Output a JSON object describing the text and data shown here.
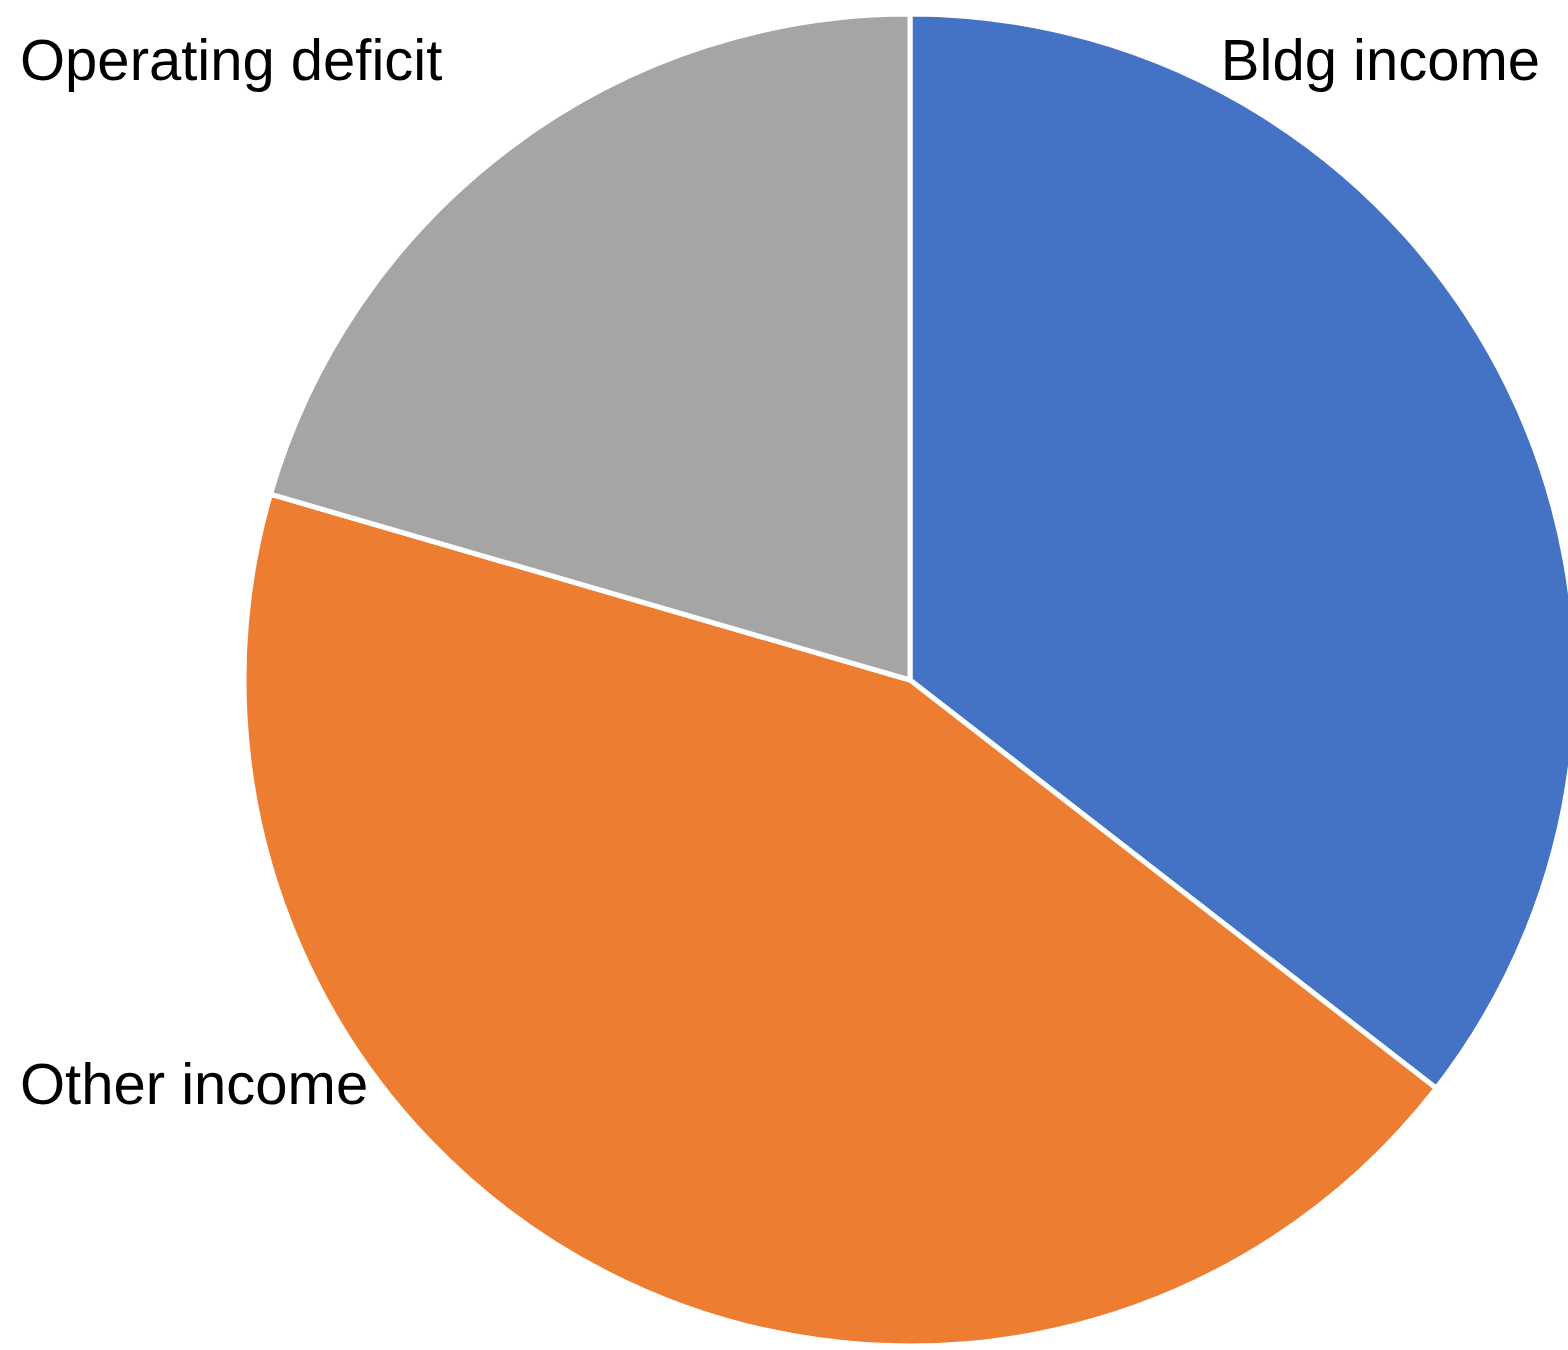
{
  "chart_data": {
    "type": "pie",
    "categories": [
      "Bldg income",
      "Other income",
      "Operating deficit"
    ],
    "values": [
      35.5,
      44,
      20.5
    ],
    "colors": [
      "#4472c4",
      "#ed7d31",
      "#a5a5a5"
    ]
  }
}
